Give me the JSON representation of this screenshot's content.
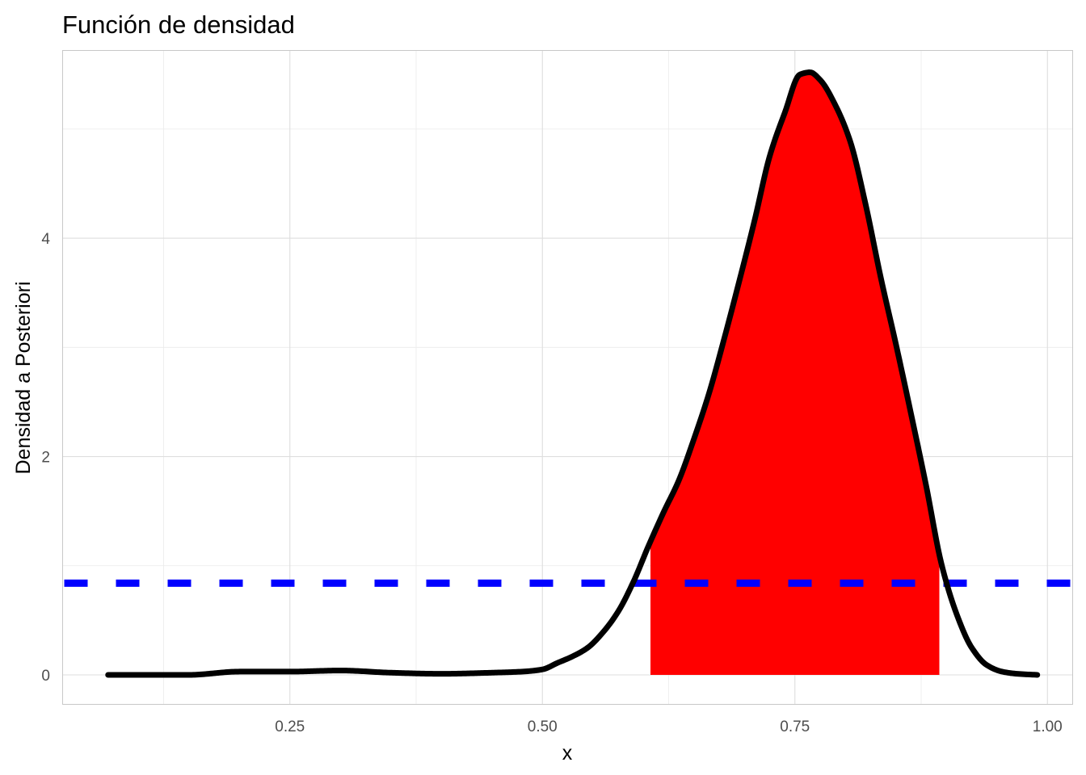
{
  "chart_data": {
    "type": "area",
    "title": "Función de densidad",
    "xlabel": "x",
    "ylabel": "Densidad a Posteriori",
    "xlim": [
      0.025,
      1.025
    ],
    "ylim": [
      -0.27,
      5.72
    ],
    "x_ticks": [
      0.25,
      0.5,
      0.75,
      1.0
    ],
    "x_tick_labels": [
      "0.25",
      "0.50",
      "0.75",
      "1.00"
    ],
    "x_minor_ticks": [
      0.125,
      0.375,
      0.625,
      0.875
    ],
    "y_ticks": [
      0,
      2,
      4
    ],
    "y_tick_labels": [
      "0",
      "2",
      "4"
    ],
    "y_minor_ticks": [
      1,
      3,
      5
    ],
    "grid": true,
    "series": [
      {
        "color": "#000000",
        "x": [
          0.07,
          0.1,
          0.15,
          0.2,
          0.25,
          0.3,
          0.35,
          0.4,
          0.45,
          0.48,
          0.5,
          0.515,
          0.53,
          0.545,
          0.56,
          0.575,
          0.59,
          0.605,
          0.62,
          0.635,
          0.65,
          0.665,
          0.68,
          0.695,
          0.71,
          0.725,
          0.74,
          0.755,
          0.765,
          0.775,
          0.79,
          0.805,
          0.82,
          0.835,
          0.85,
          0.865,
          0.88,
          0.895,
          0.91,
          0.925,
          0.94,
          0.955,
          0.97,
          0.99
        ],
        "y": [
          0.0,
          0.0,
          0.0,
          0.03,
          0.03,
          0.04,
          0.02,
          0.01,
          0.02,
          0.03,
          0.05,
          0.11,
          0.17,
          0.25,
          0.39,
          0.58,
          0.85,
          1.18,
          1.49,
          1.78,
          2.16,
          2.58,
          3.08,
          3.61,
          4.16,
          4.75,
          5.15,
          5.5,
          5.52,
          5.45,
          5.22,
          4.88,
          4.31,
          3.64,
          3.03,
          2.39,
          1.73,
          1.02,
          0.56,
          0.25,
          0.09,
          0.03,
          0.01,
          0.0
        ]
      }
    ],
    "shaded_region": {
      "x_from": 0.607,
      "x_to": 0.893,
      "color": "#ff0000"
    },
    "hline": {
      "y": 0.84,
      "color": "#0000ff",
      "style": "dashed"
    }
  }
}
